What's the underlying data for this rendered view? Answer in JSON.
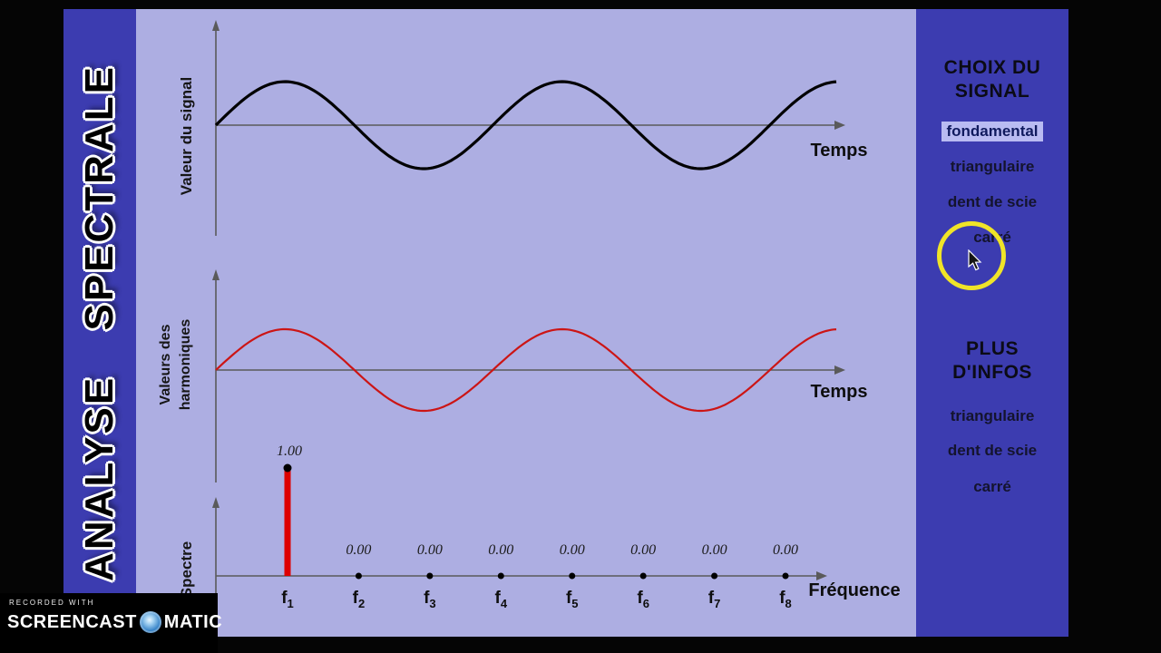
{
  "colors": {
    "panel_blue": "#3c3cb0",
    "canvas_lavender": "#adaee2",
    "signal_wave": "#000000",
    "harmonics_wave": "#cc1515",
    "spectrum_bar": "#dd0000",
    "highlight_ring": "#f0e428",
    "selected_item_bg": "#b9bbf2"
  },
  "left_banner": {
    "title": "ANALYSE  SPECTRALE"
  },
  "plots": {
    "signal": {
      "ylabel": "Valeur du signal",
      "xlabel": "Temps"
    },
    "harmonics": {
      "ylabel_line1": "Valeurs des",
      "ylabel_line2": "harmoniques",
      "xlabel": "Temps"
    },
    "spectrum": {
      "ylabel": "Spectre",
      "xlabel": "Fréquence"
    }
  },
  "chart_data": [
    {
      "id": "signal",
      "type": "line",
      "title": "Valeur du signal vs Temps (fondamental)",
      "xlabel": "Temps",
      "ylabel": "Valeur du signal",
      "color": "#000000",
      "amplitude": 1.0,
      "cycles_shown": 2.24,
      "phase_deg": 0
    },
    {
      "id": "harmonics",
      "type": "line",
      "title": "Valeurs des harmoniques vs Temps",
      "xlabel": "Temps",
      "ylabel": "Valeurs des harmoniques",
      "color": "#cc1515",
      "amplitude": 1.0,
      "cycles_shown": 2.24,
      "phase_deg": 0
    },
    {
      "id": "spectrum",
      "type": "bar",
      "title": "Spectre vs Fréquence",
      "xlabel": "Fréquence",
      "ylabel": "Spectre",
      "categories": [
        "f1",
        "f2",
        "f3",
        "f4",
        "f5",
        "f6",
        "f7",
        "f8"
      ],
      "category_base": "f",
      "category_subs": [
        "1",
        "2",
        "3",
        "4",
        "5",
        "6",
        "7",
        "8"
      ],
      "values": [
        1.0,
        0.0,
        0.0,
        0.0,
        0.0,
        0.0,
        0.0,
        0.0
      ],
      "value_labels": [
        "1.00",
        "0.00",
        "0.00",
        "0.00",
        "0.00",
        "0.00",
        "0.00",
        "0.00"
      ],
      "bar_color": "#dd0000",
      "ylim": [
        0,
        1
      ]
    }
  ],
  "menu": {
    "choix_heading_line1": "CHOIX DU",
    "choix_heading_line2": "SIGNAL",
    "signals": [
      {
        "label": "fondamental",
        "selected": true
      },
      {
        "label": "triangulaire",
        "selected": false
      },
      {
        "label": "dent de scie",
        "selected": false
      },
      {
        "label": "carré",
        "selected": false
      }
    ],
    "infos_heading_line1": "PLUS",
    "infos_heading_line2": "D'INFOS",
    "infos": [
      {
        "label": "triangulaire"
      },
      {
        "label": "dent de scie"
      },
      {
        "label": "carré"
      }
    ]
  },
  "watermark": {
    "recorded_with": "RECORDED WITH",
    "brand_left": "SCREENCAST",
    "brand_right": "MATIC"
  }
}
